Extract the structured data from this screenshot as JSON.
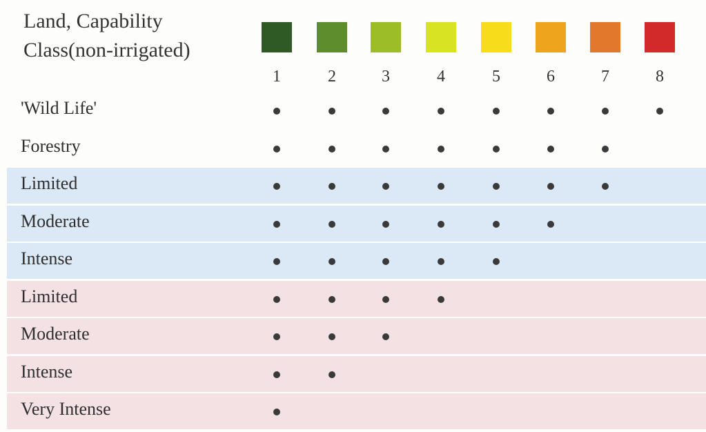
{
  "title": {
    "line1": "Land, Capability",
    "line2": "Class(non-irrigated)"
  },
  "classes": [
    {
      "label": "1",
      "color": "#2f5a25"
    },
    {
      "label": "2",
      "color": "#5e8e2c"
    },
    {
      "label": "3",
      "color": "#9cbc28"
    },
    {
      "label": "4",
      "color": "#d8e321"
    },
    {
      "label": "5",
      "color": "#f7dc1b"
    },
    {
      "label": "6",
      "color": "#efa41e"
    },
    {
      "label": "7",
      "color": "#e2782b"
    },
    {
      "label": "8",
      "color": "#d22a2b"
    }
  ],
  "rows": [
    {
      "label": "'Wild Life'",
      "max_class": 8,
      "band": "none"
    },
    {
      "label": "Forestry",
      "max_class": 7,
      "band": "none"
    },
    {
      "label": "Limited",
      "max_class": 7,
      "band": "blue"
    },
    {
      "label": "Moderate",
      "max_class": 6,
      "band": "blue"
    },
    {
      "label": "Intense",
      "max_class": 5,
      "band": "blue"
    },
    {
      "label": "Limited",
      "max_class": 4,
      "band": "pink"
    },
    {
      "label": "Moderate",
      "max_class": 3,
      "band": "pink"
    },
    {
      "label": "Intense",
      "max_class": 2,
      "band": "pink"
    },
    {
      "label": "Very Intense",
      "max_class": 1,
      "band": "pink"
    }
  ],
  "band_colors": {
    "blue": "#dbe8f5",
    "pink": "#f4e1e4"
  }
}
